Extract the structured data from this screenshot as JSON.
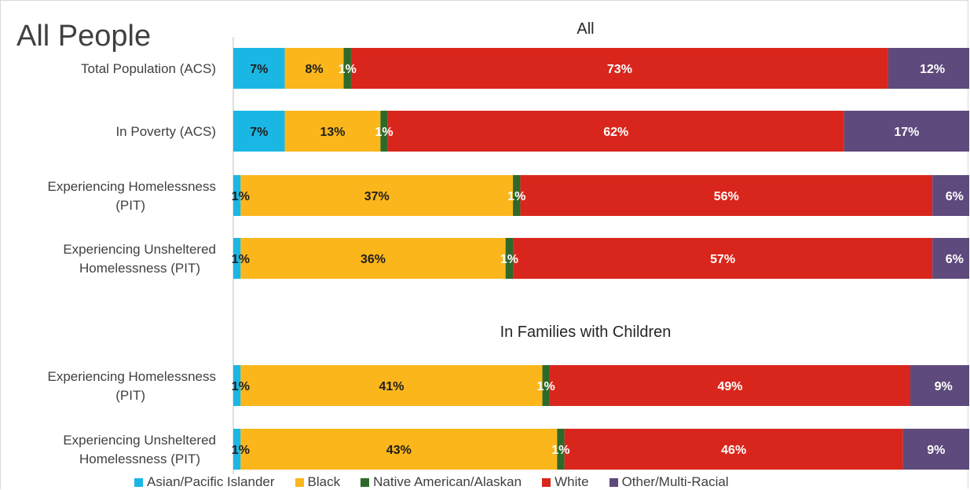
{
  "main_title": "All People",
  "colors": {
    "asian": "#1ab7e4",
    "black": "#fbb61b",
    "native": "#2d6a2a",
    "white": "#d9261c",
    "other": "#5e4a7c"
  },
  "chart_data": {
    "type": "bar",
    "orientation": "horizontal",
    "stacked": "percent",
    "xlim": [
      0,
      100
    ],
    "grid": false,
    "legend_position": "bottom",
    "groups": [
      {
        "title": "All",
        "categories": [
          "Total Population (ACS)",
          "In Poverty (ACS)",
          "Experiencing Homelessness (PIT)",
          "Experiencing Unsheltered Homelessness (PIT)"
        ]
      },
      {
        "title": "In Families with Children",
        "categories": [
          "Experiencing Homelessness (PIT)",
          "Experiencing Unsheltered Homelessness (PIT)"
        ]
      }
    ],
    "series": [
      {
        "name": "Asian/Pacific Islander",
        "color_key": "asian",
        "values": [
          7,
          7,
          1,
          1,
          1,
          1
        ],
        "labels": [
          "7%",
          "7%",
          "1%",
          "1%",
          "1%",
          "1%"
        ]
      },
      {
        "name": "Black",
        "color_key": "black",
        "values": [
          8,
          13,
          37,
          36,
          41,
          43
        ],
        "labels": [
          "8%",
          "13%",
          "37%",
          "36%",
          "41%",
          "43%"
        ]
      },
      {
        "name": "Native American/Alaskan",
        "color_key": "native",
        "values": [
          1,
          1,
          1,
          1,
          1,
          1
        ],
        "labels": [
          "1%",
          "1%",
          "1%",
          "1%",
          "1%",
          "1%"
        ]
      },
      {
        "name": "White",
        "color_key": "white",
        "values": [
          73,
          62,
          56,
          57,
          49,
          46
        ],
        "labels": [
          "73%",
          "62%",
          "56%",
          "57%",
          "49%",
          "46%"
        ]
      },
      {
        "name": "Other/Multi-Racial",
        "color_key": "other",
        "values": [
          12,
          17,
          6,
          6,
          9,
          9
        ],
        "labels": [
          "12%",
          "17%",
          "6%",
          "6%",
          "9%",
          "9%"
        ]
      }
    ]
  }
}
